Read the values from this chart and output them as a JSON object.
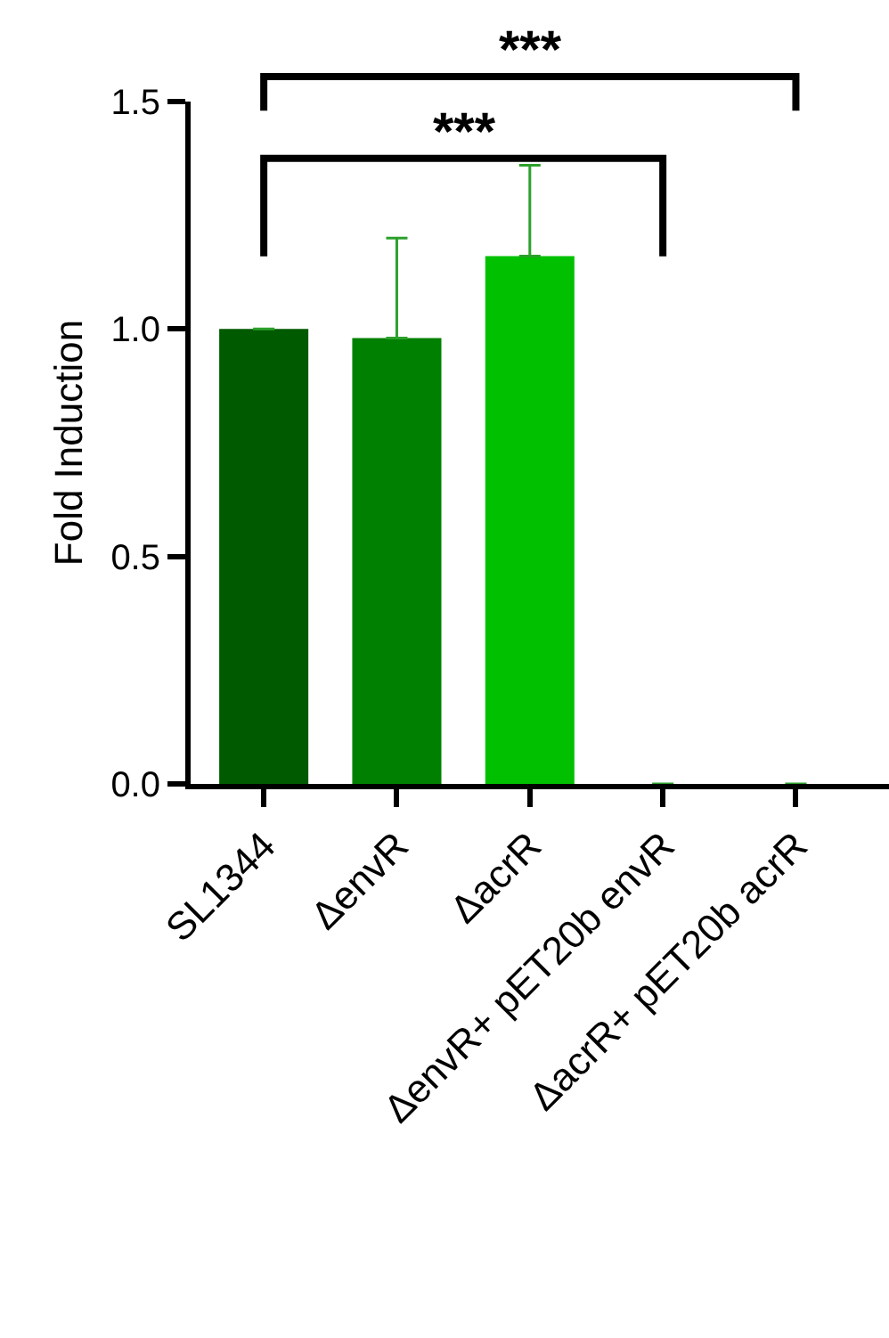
{
  "chart_data": {
    "type": "bar",
    "ylabel": "Fold Induction",
    "categories": [
      "SL1344",
      "ΔenvR",
      "ΔacrR",
      "ΔenvR+ pET20b envR",
      "ΔacrR+ pET20b acrR"
    ],
    "values": [
      1.0,
      0.98,
      1.16,
      0,
      0
    ],
    "colors": [
      "#005a00",
      "#008000",
      "#00c000",
      "#00c000",
      "#00c000"
    ],
    "errors": [
      null,
      [
        0.98,
        1.2
      ],
      [
        1.16,
        1.36
      ],
      null,
      null
    ],
    "ylim": [
      0,
      1.5
    ],
    "yticks": [
      {
        "value": 0,
        "label": "0.0"
      },
      {
        "value": 0.5,
        "label": "0.5"
      },
      {
        "value": 1.0,
        "label": "1.0"
      },
      {
        "value": 1.5,
        "label": "1.5"
      }
    ],
    "annotations": [
      "***",
      "***"
    ]
  }
}
